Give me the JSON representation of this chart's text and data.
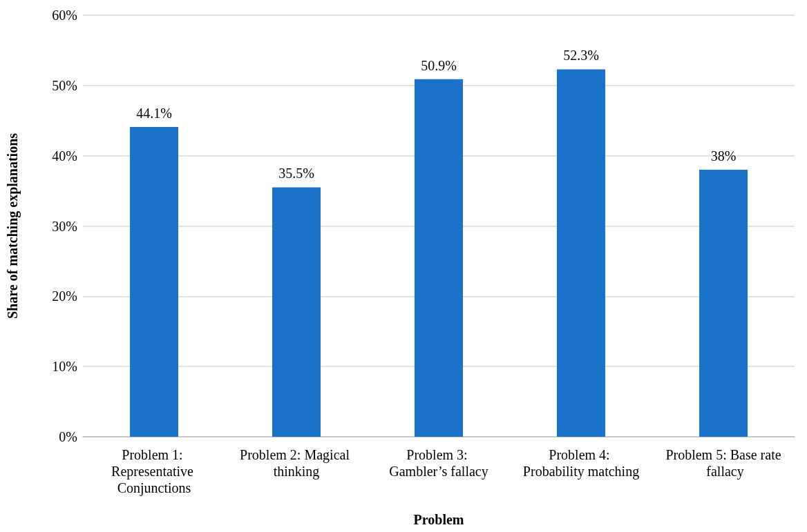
{
  "chart_data": {
    "type": "bar",
    "xlabel": "Problem",
    "ylabel": "Share of matching explanations",
    "categories": [
      "Problem 1: Representative Conjunctions",
      "Problem 2: Magical thinking",
      "Problem 3: Gambler’s fallacy",
      "Problem 4: Probability matching",
      "Problem 5: Base rate fallacy"
    ],
    "values": [
      44.1,
      35.5,
      50.9,
      52.3,
      38
    ],
    "value_labels": [
      "44.1%",
      "35.5%",
      "50.9%",
      "52.3%",
      "38%"
    ],
    "color": "#1a73c8",
    "ylim": [
      0,
      60
    ],
    "yticks": [
      {
        "value": 0,
        "label": "0%"
      },
      {
        "value": 10,
        "label": "10%"
      },
      {
        "value": 20,
        "label": "20%"
      },
      {
        "value": 30,
        "label": "30%"
      },
      {
        "value": 40,
        "label": "40%"
      },
      {
        "value": 50,
        "label": "50%"
      },
      {
        "value": 60,
        "label": "60%"
      }
    ],
    "grid": "y"
  }
}
